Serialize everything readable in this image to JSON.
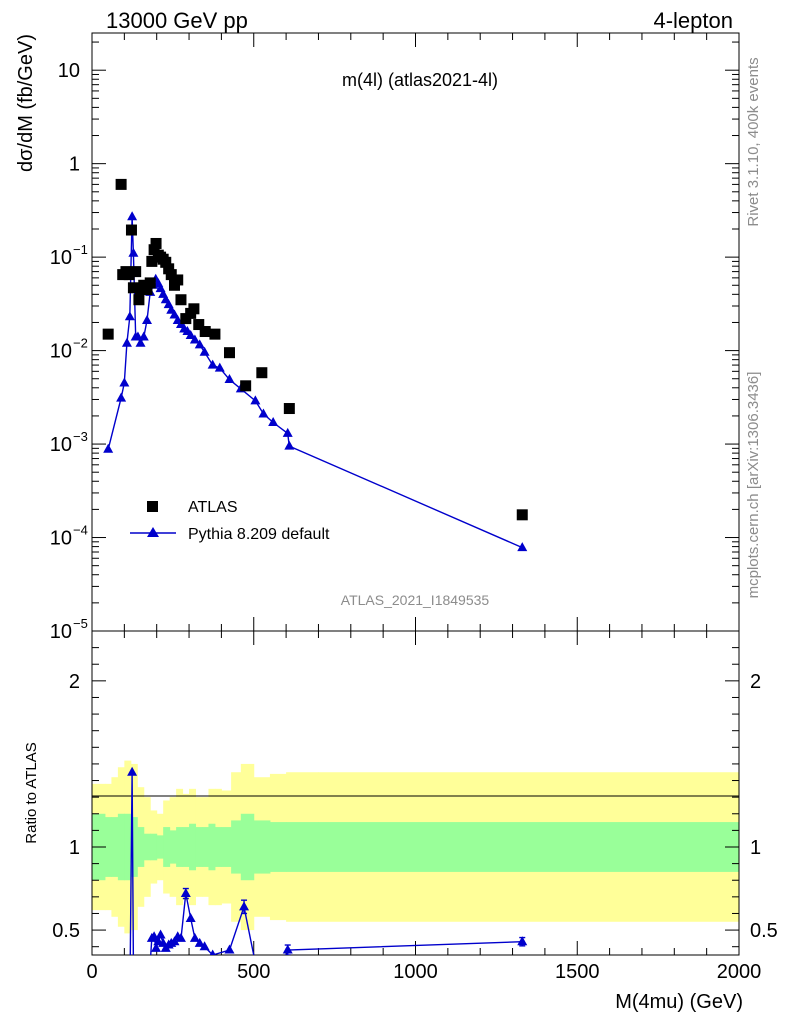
{
  "header": {
    "left": "13000 GeV pp",
    "right": "4-lepton",
    "plot_title": "m(4l) (atlas2021-4l)",
    "watermark": "ATLAS_2021_I1849535",
    "side_top": "Rivet 3.1.10,  400k events",
    "side_bottom": "mcplots.cern.ch [arXiv:1306.3436]"
  },
  "colors": {
    "data": "#000000",
    "mc": "#0000cc",
    "band_inner": "#99ff99",
    "band_outer": "#ffff99"
  },
  "chart_data": [
    {
      "type": "scatter",
      "xlabel": "M(4mu) (GeV)",
      "ylabel": "dσ/dM (fb/GeV)",
      "xlim": [
        0,
        2000
      ],
      "ylim": [
        1e-05,
        25
      ],
      "yscale": "log",
      "legend_position": "lower-left",
      "yticks": [
        {
          "v": 1e-05,
          "m": "10",
          "e": "−5"
        },
        {
          "v": 0.0001,
          "m": "10",
          "e": "−4"
        },
        {
          "v": 0.001,
          "m": "10",
          "e": "−3"
        },
        {
          "v": 0.01,
          "m": "10",
          "e": "−2"
        },
        {
          "v": 0.1,
          "m": "10",
          "e": "−1"
        },
        {
          "v": 1,
          "m": "1",
          "e": ""
        },
        {
          "v": 10,
          "m": "10",
          "e": ""
        }
      ],
      "series": [
        {
          "name": "ATLAS",
          "marker": "square",
          "points": [
            [
              50,
              0.015
            ],
            [
              90,
              0.6
            ],
            [
              95,
              0.065
            ],
            [
              105,
              0.07
            ],
            [
              115,
              0.065
            ],
            [
              122,
              0.195
            ],
            [
              128,
              0.047
            ],
            [
              135,
              0.07
            ],
            [
              145,
              0.035
            ],
            [
              150,
              0.045
            ],
            [
              160,
              0.05
            ],
            [
              170,
              0.045
            ],
            [
              180,
              0.053
            ],
            [
              185,
              0.09
            ],
            [
              192,
              0.12
            ],
            [
              198,
              0.14
            ],
            [
              205,
              0.105
            ],
            [
              212,
              0.1
            ],
            [
              220,
              0.095
            ],
            [
              228,
              0.088
            ],
            [
              237,
              0.075
            ],
            [
              245,
              0.065
            ],
            [
              255,
              0.05
            ],
            [
              265,
              0.057
            ],
            [
              275,
              0.035
            ],
            [
              290,
              0.022
            ],
            [
              305,
              0.025
            ],
            [
              315,
              0.028
            ],
            [
              330,
              0.019
            ],
            [
              350,
              0.016
            ],
            [
              380,
              0.015
            ],
            [
              425,
              0.0095
            ],
            [
              475,
              0.0042
            ],
            [
              525,
              0.0058
            ],
            [
              610,
              0.0024
            ],
            [
              1330,
              0.000175
            ]
          ]
        },
        {
          "name": "Pythia 8.209 default",
          "marker": "triangle",
          "points": [
            [
              50,
              0.00088
            ],
            [
              90,
              0.0031
            ],
            [
              100,
              0.0045
            ],
            [
              108,
              0.012
            ],
            [
              117,
              0.023
            ],
            [
              124,
              0.27
            ],
            [
              128,
              0.11
            ],
            [
              135,
              0.014
            ],
            [
              142,
              0.014
            ],
            [
              150,
              0.012
            ],
            [
              160,
              0.014
            ],
            [
              170,
              0.021
            ],
            [
              180,
              0.042
            ],
            [
              190,
              0.05
            ],
            [
              197,
              0.058
            ],
            [
              205,
              0.052
            ],
            [
              212,
              0.046
            ],
            [
              220,
              0.04
            ],
            [
              228,
              0.035
            ],
            [
              237,
              0.031
            ],
            [
              245,
              0.027
            ],
            [
              255,
              0.024
            ],
            [
              265,
              0.021
            ],
            [
              275,
              0.019
            ],
            [
              285,
              0.017
            ],
            [
              295,
              0.016
            ],
            [
              305,
              0.0145
            ],
            [
              318,
              0.013
            ],
            [
              333,
              0.0115
            ],
            [
              348,
              0.0096
            ],
            [
              373,
              0.007
            ],
            [
              395,
              0.0065
            ],
            [
              425,
              0.0049
            ],
            [
              460,
              0.0039
            ],
            [
              505,
              0.0029
            ],
            [
              530,
              0.0021
            ],
            [
              560,
              0.0017
            ],
            [
              605,
              0.0013
            ],
            [
              610,
              0.00095
            ],
            [
              1330,
              7.8e-05
            ]
          ]
        }
      ]
    },
    {
      "type": "line",
      "xlabel": "M(4mu) (GeV)",
      "ylabel": "Ratio to ATLAS",
      "xlim": [
        0,
        2000
      ],
      "ylim": [
        0.35,
        2.3
      ],
      "yticks": [
        0.5,
        1,
        2
      ],
      "xticks": [
        0,
        500,
        1000,
        1500,
        2000
      ],
      "band_inner": {
        "edges": [
          0,
          20,
          40,
          60,
          80,
          100,
          120,
          140,
          160,
          180,
          200,
          220,
          240,
          260,
          280,
          300,
          320,
          340,
          360,
          380,
          400,
          430,
          460,
          500,
          550,
          600,
          700,
          2000
        ],
        "half_widths": [
          0.2,
          0.2,
          0.18,
          0.18,
          0.2,
          0.2,
          0.18,
          0.12,
          0.08,
          0.08,
          0.07,
          0.12,
          0.1,
          0.12,
          0.12,
          0.14,
          0.12,
          0.12,
          0.14,
          0.12,
          0.12,
          0.16,
          0.2,
          0.16,
          0.15,
          0.15,
          0.15
        ]
      },
      "band_outer": {
        "edges": [
          0,
          20,
          40,
          60,
          80,
          100,
          120,
          140,
          160,
          180,
          200,
          220,
          240,
          260,
          280,
          300,
          320,
          340,
          360,
          380,
          400,
          430,
          460,
          500,
          550,
          600,
          700,
          2000
        ],
        "half_widths": [
          0.38,
          0.38,
          0.38,
          0.42,
          0.48,
          0.52,
          0.5,
          0.36,
          0.3,
          0.22,
          0.2,
          0.28,
          0.3,
          0.35,
          0.32,
          0.35,
          0.3,
          0.3,
          0.35,
          0.35,
          0.34,
          0.45,
          0.5,
          0.42,
          0.44,
          0.45,
          0.45
        ]
      },
      "series": [
        {
          "name": "Pythia 8.209 default",
          "points": [
            [
              118,
              0.3
            ],
            [
              124,
              1.45
            ],
            [
              128,
              0.3
            ],
            [
              180,
              0.3
            ],
            [
              185,
              0.45
            ],
            [
              192,
              0.46
            ],
            [
              198,
              0.39
            ],
            [
              205,
              0.43
            ],
            [
              212,
              0.47
            ],
            [
              220,
              0.42
            ],
            [
              228,
              0.39
            ],
            [
              237,
              0.41
            ],
            [
              245,
              0.42
            ],
            [
              255,
              0.43
            ],
            [
              265,
              0.46
            ],
            [
              275,
              0.45
            ],
            [
              290,
              0.72
            ],
            [
              305,
              0.57
            ],
            [
              318,
              0.45
            ],
            [
              333,
              0.42
            ],
            [
              348,
              0.4
            ],
            [
              373,
              0.35
            ],
            [
              425,
              0.38
            ],
            [
              470,
              0.64
            ],
            [
              505,
              0.3
            ],
            [
              600,
              0.3
            ],
            [
              605,
              0.38
            ],
            [
              1330,
              0.43
            ]
          ],
          "errors": [
            [
              470,
              0.04
            ],
            [
              290,
              0.03
            ],
            [
              1330,
              0.025
            ],
            [
              605,
              0.03
            ]
          ]
        }
      ]
    }
  ]
}
